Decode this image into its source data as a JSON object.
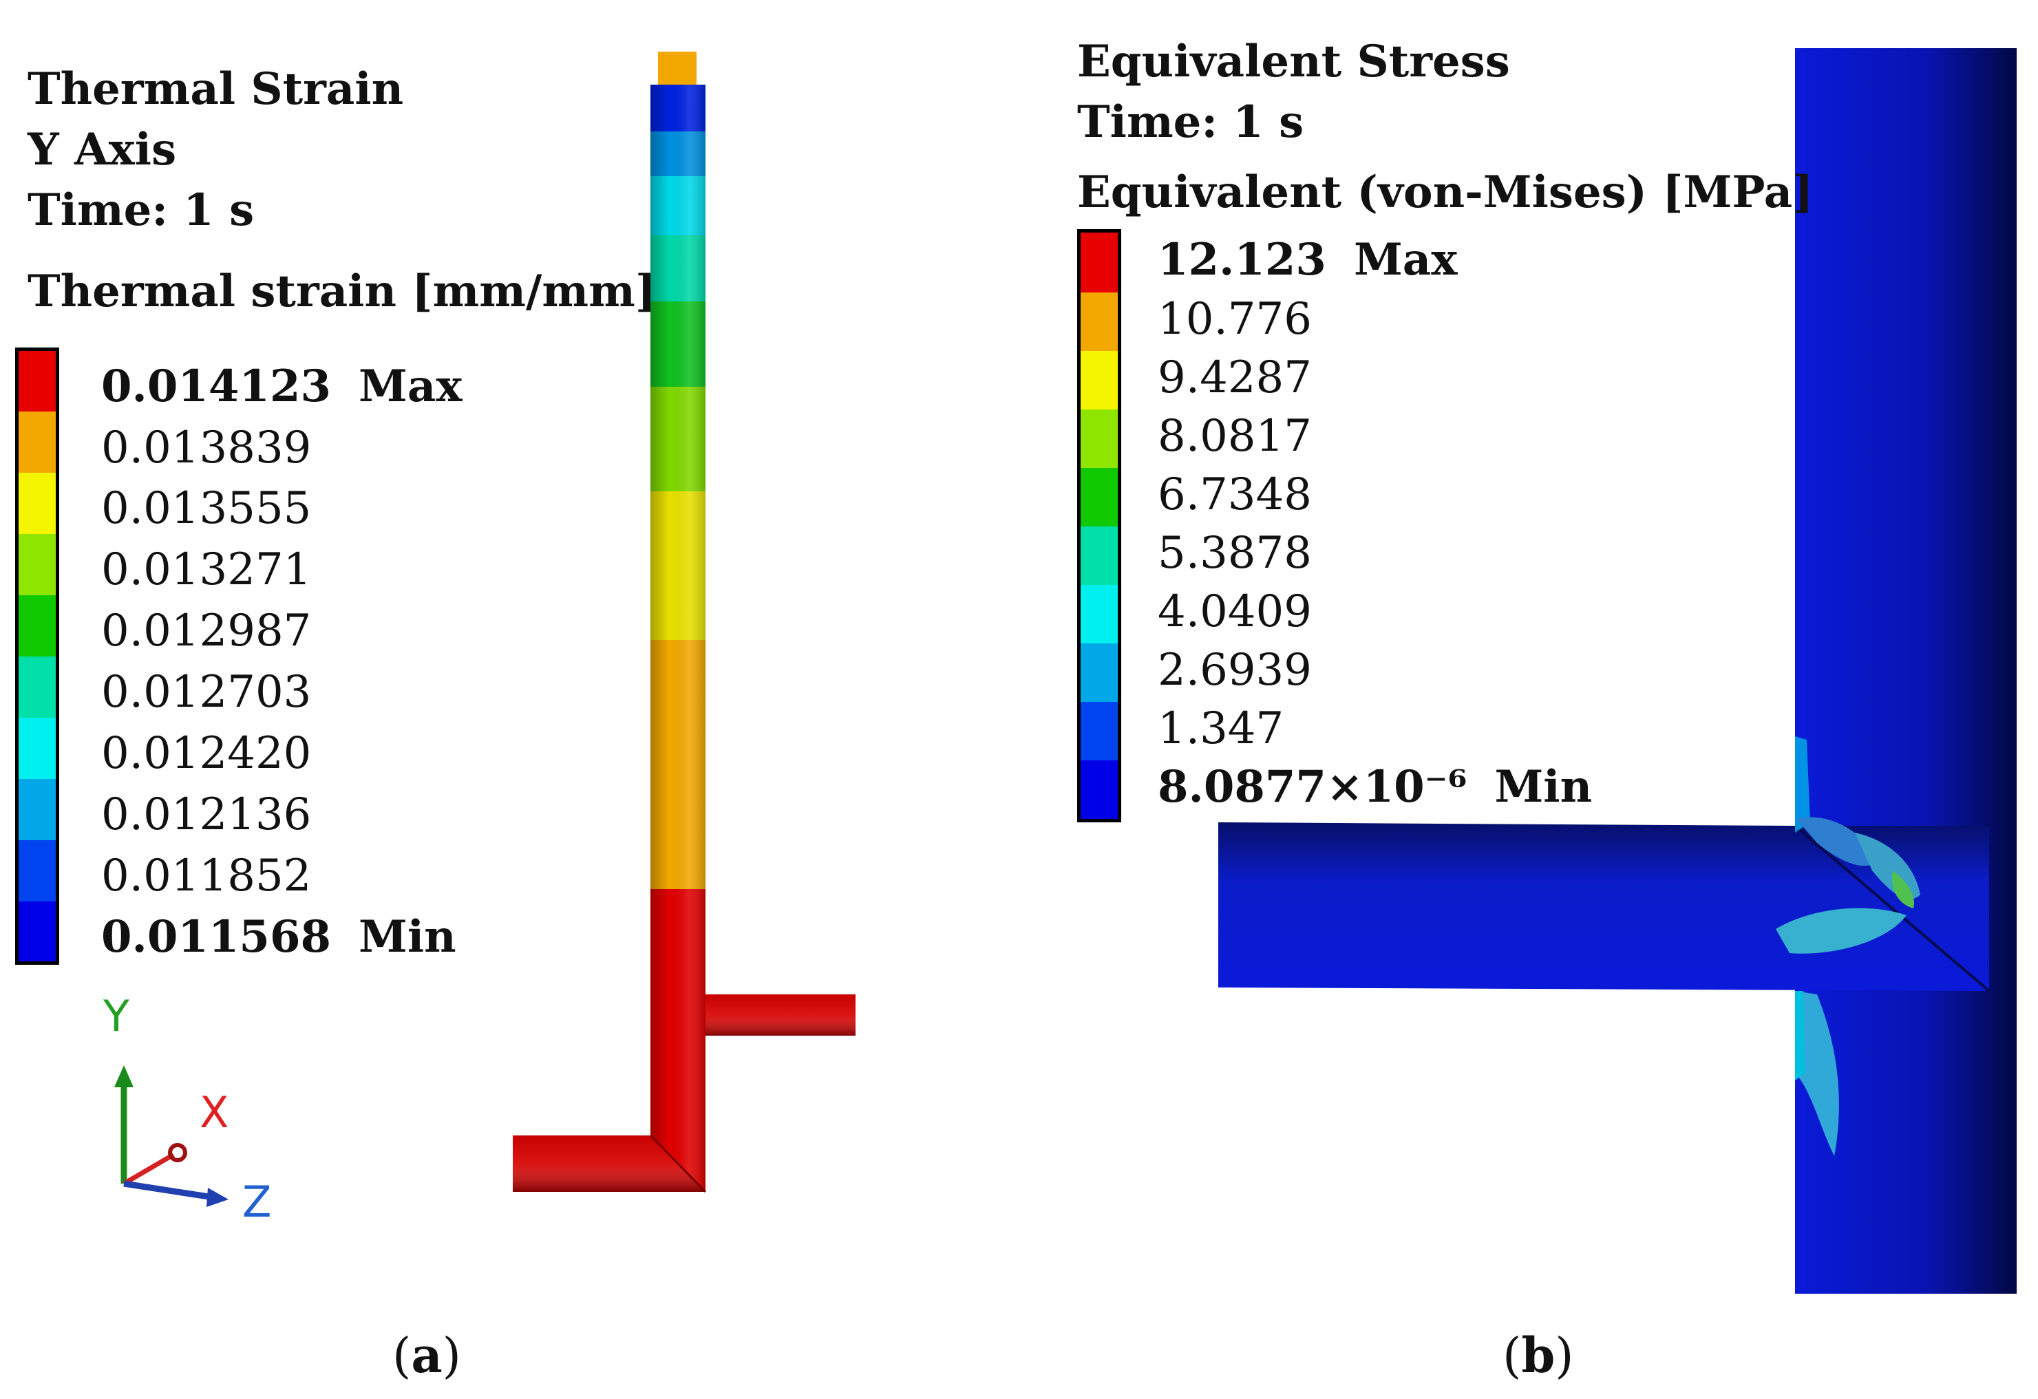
{
  "panel_a": {
    "title_lines": [
      "Thermal Strain",
      "Y Axis",
      "Time: 1 s"
    ],
    "legend_title": "Thermal strain [mm/mm]",
    "legend": [
      {
        "value": "0.014123",
        "tag": "Max",
        "color": "#e60000"
      },
      {
        "value": "0.013839",
        "tag": "",
        "color": "#f2a800"
      },
      {
        "value": "0.013555",
        "tag": "",
        "color": "#f5f500"
      },
      {
        "value": "0.013271",
        "tag": "",
        "color": "#8ee600"
      },
      {
        "value": "0.012987",
        "tag": "",
        "color": "#10c800"
      },
      {
        "value": "0.012703",
        "tag": "",
        "color": "#00e0a8"
      },
      {
        "value": "0.012420",
        "tag": "",
        "color": "#00f0f0"
      },
      {
        "value": "0.012136",
        "tag": "",
        "color": "#00a8e8"
      },
      {
        "value": "0.011852",
        "tag": "",
        "color": "#0044f0"
      },
      {
        "value": "0.011568",
        "tag": "Min",
        "color": "#0000e6"
      }
    ],
    "triad": {
      "y": "Y",
      "x": "X",
      "z": "Z",
      "y_color": "#22a022",
      "x_color": "#e02020",
      "z_color": "#2060d0"
    },
    "caption": "a"
  },
  "panel_b": {
    "title_lines": [
      "Equivalent Stress",
      "Time: 1 s"
    ],
    "legend_title": "Equivalent (von-Mises) [MPa]",
    "legend": [
      {
        "value": "12.123",
        "tag": "Max",
        "color": "#e60000"
      },
      {
        "value": "10.776",
        "tag": "",
        "color": "#f2a800"
      },
      {
        "value": "9.4287",
        "tag": "",
        "color": "#f5f500"
      },
      {
        "value": "8.0817",
        "tag": "",
        "color": "#8ee600"
      },
      {
        "value": "6.7348",
        "tag": "",
        "color": "#10c800"
      },
      {
        "value": "5.3878",
        "tag": "",
        "color": "#00e0a8"
      },
      {
        "value": "4.0409",
        "tag": "",
        "color": "#00f0f0"
      },
      {
        "value": "2.6939",
        "tag": "",
        "color": "#00a8e8"
      },
      {
        "value": "1.347",
        "tag": "",
        "color": "#0044f0"
      },
      {
        "value": "8.0877×10⁻⁶",
        "tag": "Min",
        "color": "#0000e6"
      }
    ],
    "caption": "b"
  }
}
